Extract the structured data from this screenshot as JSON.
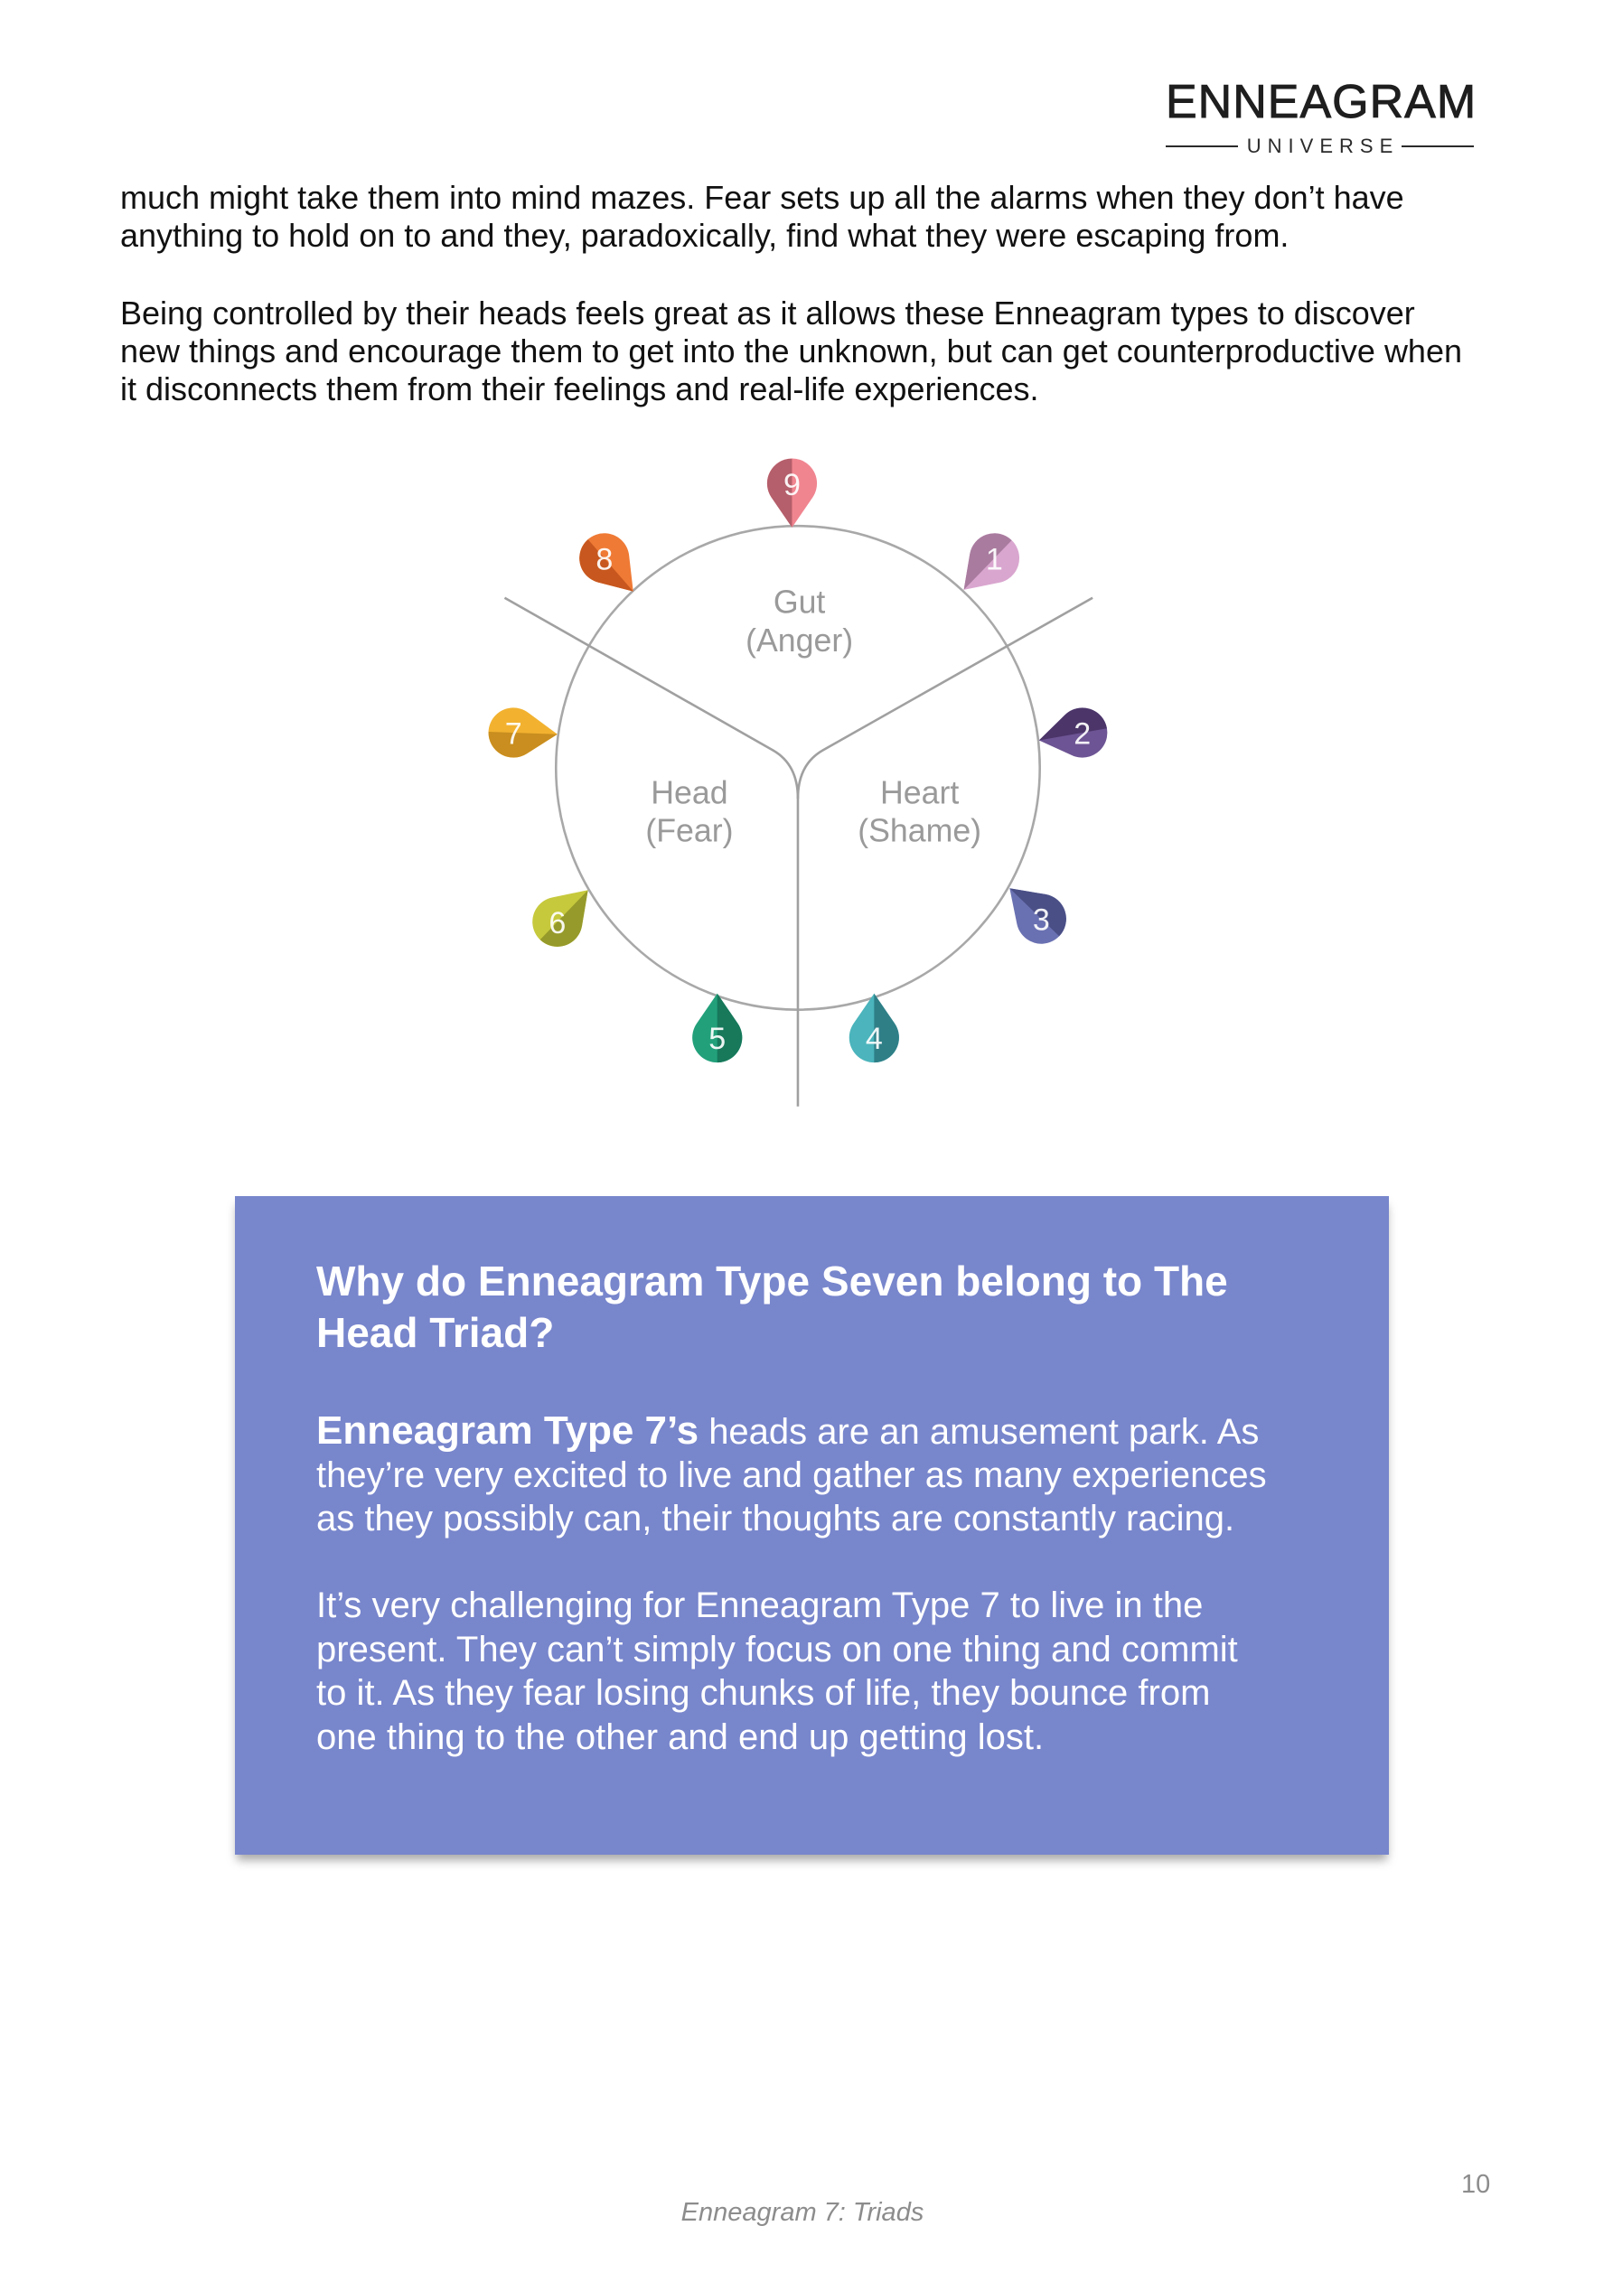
{
  "header": {
    "logo_main": "ENNEAGRAM",
    "logo_sub": "UNIVERSE"
  },
  "intro": {
    "paragraph_1": [
      "much might take them into mind mazes. Fear sets up all the alarms when they don’t have",
      "anything to hold on to and they, paradoxically, find what they were escaping from."
    ],
    "paragraph_2": [
      "Being controlled by their heads feels great as it allows these Enneagram types to discover",
      "new things and encourage them to get into the unknown, but can get counterproductive when",
      "it disconnects them from their feelings and real-life experiences."
    ]
  },
  "diagram": {
    "centers": {
      "gut": {
        "label": "Gut",
        "emotion": "(Anger)"
      },
      "head": {
        "label": "Head",
        "emotion": "(Fear)"
      },
      "heart": {
        "label": "Heart",
        "emotion": "(Shame)"
      }
    },
    "pins": [
      {
        "number": "1",
        "color": "#d9a6cf",
        "shade": "#a97c9f"
      },
      {
        "number": "2",
        "color": "#6d5494",
        "shade": "#4b3569"
      },
      {
        "number": "3",
        "color": "#6a71b2",
        "shade": "#4a4f86"
      },
      {
        "number": "4",
        "color": "#4bb4bc",
        "shade": "#2f7f87"
      },
      {
        "number": "5",
        "color": "#22a07a",
        "shade": "#17785a"
      },
      {
        "number": "6",
        "color": "#c6c93c",
        "shade": "#969a2a"
      },
      {
        "number": "7",
        "color": "#f2b230",
        "shade": "#c98e1f"
      },
      {
        "number": "8",
        "color": "#ef7a35",
        "shade": "#c7571e"
      },
      {
        "number": "9",
        "color": "#f08590",
        "shade": "#b45f6b"
      }
    ],
    "line_color": "#a8a8a8",
    "label_color": "#9a9a9a"
  },
  "callout": {
    "title": [
      "Why do Enneagram Type Seven belong to The",
      "Head Triad?"
    ],
    "paragraph_1": {
      "lead": "Enneagram Type 7’s",
      "lines": [
        "heads are an amusement park. As",
        "they’re very excited to live and gather as many experiences",
        "as they possibly can, their thoughts are constantly racing."
      ]
    },
    "paragraph_2": [
      "It’s very challenging for Enneagram Type 7 to live in the",
      "present. They can’t simply focus on one thing and commit",
      "to it. As they fear losing chunks of life, they bounce from",
      "one thing to the other and end up getting lost."
    ],
    "background_color": "#7886cc"
  },
  "footer": {
    "title": "Enneagram 7: Triads",
    "page_number": "10"
  }
}
